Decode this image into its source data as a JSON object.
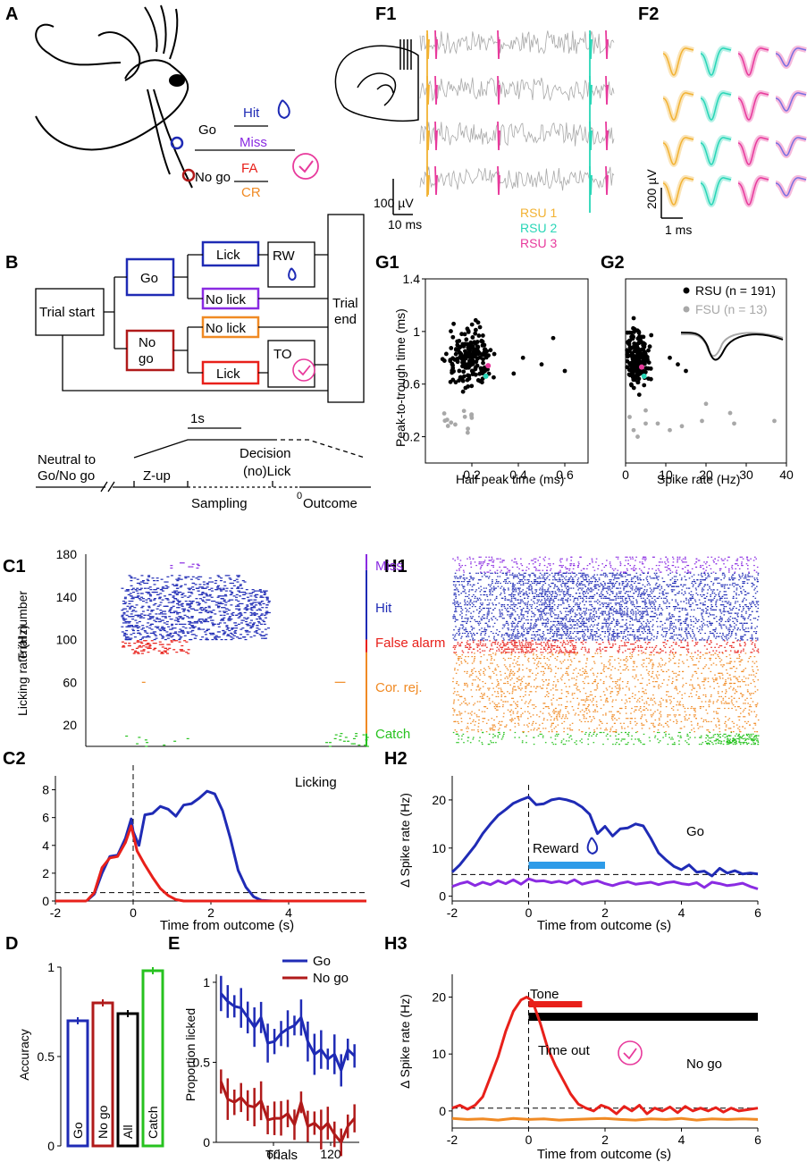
{
  "panels": {
    "A": "A",
    "B": "B",
    "C1": "C1",
    "C2": "C2",
    "D": "D",
    "E": "E",
    "F1": "F1",
    "F2": "F2",
    "G1": "G1",
    "G2": "G2",
    "H1": "H1",
    "H2": "H2",
    "H3": "H3"
  },
  "colors": {
    "go": "#1f2bb5",
    "nogo": "#b01a1a",
    "miss": "#8a2be2",
    "fa": "#e8201a",
    "cr": "#f08a24",
    "catch": "#27c21f",
    "rsu1": "#f2b233",
    "rsu2": "#29d6b7",
    "rsu3": "#e83a9c",
    "gray": "#a8a8a8",
    "reward_bar": "#2e9be8"
  },
  "panelA": {
    "go": "Go",
    "nogo": "No go",
    "hit": "Hit",
    "miss": "Miss",
    "fa": "FA",
    "cr": "CR"
  },
  "panelB": {
    "trial_start": "Trial start",
    "go": "Go",
    "nogo_1": "No",
    "nogo_2": "go",
    "lick": "Lick",
    "nolick": "No lick",
    "rw": "RW",
    "to": "TO",
    "trial_end_1": "Trial",
    "trial_end_2": "end",
    "timeline": {
      "scale": "1s",
      "neutral_1": "Neutral to",
      "neutral_2": "Go/No go",
      "zup": "Z-up",
      "decision": "Decision",
      "nolick": "(no)Lick",
      "sampling": "Sampling",
      "zero": "0",
      "outcome": "Outcome"
    }
  },
  "panelF1": {
    "scale_v": "100 µV",
    "scale_t": "10 ms",
    "legend": [
      "RSU 1",
      "RSU 2",
      "RSU 3"
    ]
  },
  "panelF2": {
    "scale_v": "200 µV",
    "scale_t": "1 ms"
  },
  "chart_data": [
    {
      "id": "C1",
      "type": "scatter",
      "title": "",
      "ylabel": "Trial number",
      "xlabel": "",
      "yticks": [
        20,
        60,
        100,
        140,
        180
      ],
      "ylim": [
        0,
        180
      ],
      "xlim": [
        -2,
        6
      ],
      "legend": [
        {
          "name": "Miss",
          "trials": [
            165,
            180
          ]
        },
        {
          "name": "Hit",
          "trials": [
            100,
            165
          ]
        },
        {
          "name": "False alarm",
          "trials": [
            88,
            100
          ]
        },
        {
          "name": "Cor. rej.",
          "trials": [
            12,
            88
          ]
        },
        {
          "name": "Catch",
          "trials": [
            0,
            12
          ]
        }
      ]
    },
    {
      "id": "C2",
      "type": "line",
      "xlabel": "Time from outcome (s)",
      "ylabel": "Licking rate (Hz)",
      "xlim": [
        -2,
        6
      ],
      "ylim": [
        0,
        9
      ],
      "xticks": [
        -2,
        0,
        2,
        4
      ],
      "yticks": [
        0,
        2,
        4,
        6,
        8
      ],
      "annotation": "Licking",
      "baseline": 0.6,
      "series": [
        {
          "name": "Go",
          "x": [
            -1.2,
            -1.0,
            -0.8,
            -0.6,
            -0.4,
            -0.2,
            -0.05,
            0.0,
            0.15,
            0.3,
            0.5,
            0.7,
            0.9,
            1.1,
            1.3,
            1.5,
            1.7,
            1.9,
            2.1,
            2.3,
            2.5,
            2.7,
            2.9,
            3.1,
            3.3,
            3.6,
            4.0,
            5.0,
            6.0
          ],
          "values": [
            0.0,
            0.5,
            2.0,
            3.2,
            3.3,
            4.5,
            5.9,
            5.0,
            4.0,
            6.2,
            6.3,
            6.8,
            6.6,
            6.1,
            6.9,
            7.0,
            7.4,
            7.9,
            7.7,
            6.5,
            4.5,
            2.2,
            1.0,
            0.3,
            0.05,
            0.0,
            0.0,
            0.0,
            0.0
          ]
        },
        {
          "name": "No go",
          "x": [
            -1.2,
            -1.0,
            -0.8,
            -0.6,
            -0.4,
            -0.2,
            -0.05,
            0.1,
            0.3,
            0.5,
            0.7,
            0.9,
            1.1,
            1.3,
            2.0,
            6.0
          ],
          "values": [
            0.0,
            0.6,
            2.4,
            3.1,
            3.2,
            4.2,
            5.4,
            3.6,
            2.6,
            1.7,
            0.9,
            0.4,
            0.1,
            0.0,
            0.0,
            0.0
          ]
        }
      ]
    },
    {
      "id": "D",
      "type": "bar",
      "ylabel": "Accuracy",
      "categories": [
        "Go",
        "No go",
        "All",
        "Catch"
      ],
      "values": [
        0.7,
        0.8,
        0.74,
        0.98
      ],
      "ylim": [
        0,
        1
      ],
      "yticks": [
        0,
        0.5,
        1
      ]
    },
    {
      "id": "E",
      "type": "line",
      "xlabel": "Trials",
      "ylabel": "Proportion licked",
      "xlim": [
        0,
        150
      ],
      "ylim": [
        0,
        1.05
      ],
      "xticks": [
        60,
        120
      ],
      "yticks": [
        0,
        0.5,
        1
      ],
      "series": [
        {
          "name": "Go",
          "x": [
            5,
            12,
            19,
            26,
            33,
            40,
            47,
            54,
            61,
            68,
            75,
            82,
            89,
            96,
            103,
            110,
            117,
            124,
            131,
            138,
            145
          ],
          "values": [
            0.93,
            0.88,
            0.85,
            0.84,
            0.78,
            0.72,
            0.78,
            0.62,
            0.63,
            0.68,
            0.71,
            0.73,
            0.78,
            0.63,
            0.55,
            0.58,
            0.52,
            0.55,
            0.45,
            0.58,
            0.54
          ]
        },
        {
          "name": "No go",
          "x": [
            5,
            12,
            19,
            26,
            33,
            40,
            47,
            54,
            61,
            68,
            75,
            82,
            89,
            96,
            103,
            110,
            117,
            124,
            131,
            138,
            145
          ],
          "values": [
            0.38,
            0.27,
            0.25,
            0.28,
            0.23,
            0.22,
            0.26,
            0.14,
            0.15,
            0.15,
            0.18,
            0.11,
            0.25,
            0.1,
            0.12,
            0.08,
            0.12,
            0.05,
            0.0,
            0.1,
            0.15
          ]
        }
      ]
    },
    {
      "id": "G1",
      "type": "scatter",
      "xlabel": "Half peak time (ms)",
      "ylabel": "Peak-to-trough time (ms)",
      "xlim": [
        0,
        0.7
      ],
      "ylim": [
        0,
        1.4
      ],
      "xticks": [
        0.2,
        0.4,
        0.6
      ],
      "yticks": [
        0.2,
        0.6,
        1,
        1.4
      ],
      "series": [
        {
          "name": "RSU",
          "n": 191
        },
        {
          "name": "FSU",
          "n": 13
        }
      ]
    },
    {
      "id": "G2",
      "type": "scatter",
      "xlabel": "Spike rate (Hz)",
      "ylabel": "",
      "xlim": [
        0,
        40
      ],
      "ylim": [
        0,
        1.4
      ],
      "xticks": [
        0,
        10,
        20,
        30,
        40
      ],
      "legend": [
        "RSU (n = 191)",
        "FSU (n = 13)"
      ]
    },
    {
      "id": "H1",
      "type": "scatter",
      "xlim": [
        -2,
        6
      ],
      "ylim": [
        0,
        180
      ]
    },
    {
      "id": "H2",
      "type": "line",
      "xlabel": "Time from outcome (s)",
      "ylabel": "Δ Spike rate (Hz)",
      "xlim": [
        -2,
        6
      ],
      "ylim": [
        -1,
        25
      ],
      "xticks": [
        -2,
        0,
        2,
        4,
        6
      ],
      "yticks": [
        0,
        10,
        20
      ],
      "annotation": "Go",
      "reward_label": "Reward",
      "reward_window": [
        0,
        2
      ],
      "baseline": 4.5,
      "series": [
        {
          "name": "Hit",
          "x": [
            -2.0,
            -1.8,
            -1.6,
            -1.4,
            -1.2,
            -1.0,
            -0.8,
            -0.6,
            -0.4,
            -0.2,
            0.0,
            0.2,
            0.4,
            0.6,
            0.8,
            1.0,
            1.2,
            1.4,
            1.6,
            1.8,
            2.0,
            2.2,
            2.4,
            2.6,
            2.8,
            3.0,
            3.2,
            3.4,
            3.6,
            3.8,
            4.0,
            4.2,
            4.4,
            4.6,
            4.8,
            5.0,
            5.2,
            5.4,
            5.6,
            5.8,
            6.0
          ],
          "values": [
            5.0,
            6.5,
            8.5,
            10.5,
            13.0,
            15.0,
            16.8,
            18.0,
            19.3,
            20.0,
            20.6,
            19.0,
            19.2,
            20.0,
            20.3,
            20.0,
            19.5,
            18.5,
            17.0,
            13.0,
            14.5,
            12.5,
            14.0,
            14.2,
            15.0,
            14.6,
            12.0,
            9.0,
            7.5,
            6.2,
            5.5,
            6.5,
            5.0,
            5.2,
            4.2,
            5.8,
            4.8,
            5.3,
            4.6,
            4.8,
            4.6
          ]
        },
        {
          "name": "Miss",
          "x": [
            -2.0,
            -1.8,
            -1.6,
            -1.4,
            -1.2,
            -1.0,
            -0.8,
            -0.6,
            -0.4,
            -0.2,
            0.0,
            0.2,
            0.4,
            0.6,
            0.8,
            1.0,
            1.2,
            1.4,
            1.6,
            1.8,
            2.0,
            2.2,
            2.4,
            2.6,
            2.8,
            3.0,
            3.2,
            3.4,
            3.6,
            3.8,
            4.0,
            4.2,
            4.4,
            4.6,
            4.8,
            5.0,
            5.2,
            5.4,
            5.6,
            5.8,
            6.0
          ],
          "values": [
            2.0,
            2.6,
            3.0,
            2.2,
            2.9,
            2.4,
            3.2,
            2.6,
            3.4,
            2.5,
            3.6,
            3.1,
            3.2,
            2.8,
            3.1,
            2.7,
            3.4,
            2.5,
            2.9,
            3.2,
            2.6,
            2.2,
            2.7,
            3.0,
            2.5,
            2.7,
            2.9,
            2.4,
            2.8,
            3.0,
            2.6,
            2.4,
            2.8,
            1.8,
            2.9,
            2.6,
            2.2,
            2.4,
            2.7,
            2.0,
            1.5
          ]
        }
      ]
    },
    {
      "id": "H3",
      "type": "line",
      "xlabel": "Time from outcome (s)",
      "ylabel": "Δ Spike rate (Hz)",
      "xlim": [
        -2,
        6
      ],
      "ylim": [
        -3,
        24
      ],
      "xticks": [
        -2,
        0,
        2,
        4,
        6
      ],
      "yticks": [
        0,
        10,
        20
      ],
      "annotation": "No go",
      "tone_label": "Tone",
      "timeout_label": "Time out",
      "tone_window": [
        0,
        1.4
      ],
      "timeout_window": [
        0,
        8
      ],
      "baseline": 0.5,
      "series": [
        {
          "name": "False alarm",
          "x": [
            -2.0,
            -1.8,
            -1.6,
            -1.4,
            -1.2,
            -1.0,
            -0.8,
            -0.6,
            -0.4,
            -0.2,
            -0.05,
            0.1,
            0.3,
            0.5,
            0.7,
            0.9,
            1.1,
            1.3,
            1.5,
            1.7,
            1.9,
            2.1,
            2.3,
            2.5,
            2.7,
            2.9,
            3.1,
            3.3,
            3.5,
            3.7,
            3.9,
            4.1,
            4.3,
            4.5,
            4.7,
            4.9,
            5.1,
            5.3,
            5.5,
            5.7,
            6.0
          ],
          "values": [
            0.5,
            1.0,
            0.3,
            1.0,
            2.5,
            6.0,
            9.5,
            14.0,
            17.5,
            19.5,
            20.0,
            19.3,
            15.5,
            11.0,
            8.0,
            5.5,
            3.0,
            1.2,
            0.5,
            0.0,
            1.0,
            0.5,
            -0.5,
            0.8,
            0.0,
            1.0,
            -0.5,
            0.5,
            0.0,
            0.7,
            -0.3,
            0.8,
            0.0,
            0.5,
            0.0,
            0.6,
            -0.2,
            0.5,
            0.0,
            0.2,
            0.5
          ]
        },
        {
          "name": "Correct rejection",
          "x": [
            -2.0,
            -1.6,
            -1.2,
            -0.8,
            -0.4,
            0.0,
            0.4,
            0.8,
            1.2,
            1.6,
            2.0,
            2.4,
            2.8,
            3.2,
            3.6,
            4.0,
            4.4,
            4.8,
            5.2,
            5.6,
            6.0
          ],
          "values": [
            -1.3,
            -1.5,
            -1.4,
            -1.6,
            -1.3,
            -1.5,
            -1.4,
            -1.6,
            -1.5,
            -1.4,
            -1.3,
            -1.5,
            -1.6,
            -1.4,
            -1.5,
            -1.3,
            -1.6,
            -1.4,
            -1.5,
            -1.4,
            -1.5
          ]
        }
      ]
    }
  ]
}
